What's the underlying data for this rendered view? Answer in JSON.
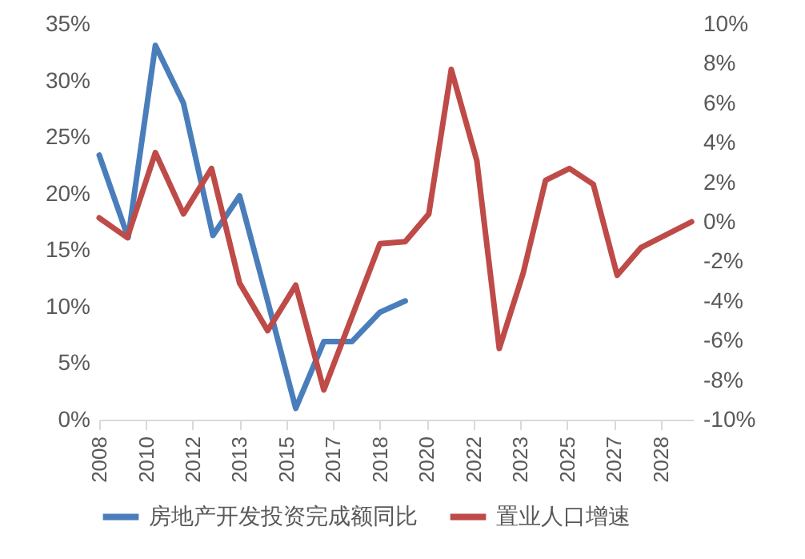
{
  "chart_data": {
    "type": "line",
    "legend": "bottom",
    "grid": false,
    "line_style": "solid",
    "marker": "none",
    "xlim": [
      2008.25,
      2029.4
    ],
    "xticks": [
      {
        "value": 2008.25,
        "label": "2008"
      },
      {
        "value": 2009.92,
        "label": "2010"
      },
      {
        "value": 2011.58,
        "label": "2012"
      },
      {
        "value": 2013.25,
        "label": "2013"
      },
      {
        "value": 2014.92,
        "label": "2015"
      },
      {
        "value": 2016.58,
        "label": "2017"
      },
      {
        "value": 2018.25,
        "label": "2018"
      },
      {
        "value": 2019.92,
        "label": "2020"
      },
      {
        "value": 2021.58,
        "label": "2022"
      },
      {
        "value": 2023.25,
        "label": "2023"
      },
      {
        "value": 2024.92,
        "label": "2025"
      },
      {
        "value": 2026.58,
        "label": "2027"
      },
      {
        "value": 2028.25,
        "label": "2028"
      }
    ],
    "ylim": [
      0,
      35
    ],
    "yticks": [
      {
        "value": 0,
        "label": "0%"
      },
      {
        "value": 5,
        "label": "5%"
      },
      {
        "value": 10,
        "label": "10%"
      },
      {
        "value": 15,
        "label": "15%"
      },
      {
        "value": 20,
        "label": "20%"
      },
      {
        "value": 25,
        "label": "25%"
      },
      {
        "value": 30,
        "label": "30%"
      },
      {
        "value": 35,
        "label": "35%"
      }
    ],
    "y2lim": [
      -10,
      10
    ],
    "y2ticks": [
      {
        "value": -10,
        "label": "-10%"
      },
      {
        "value": -8,
        "label": "-8%"
      },
      {
        "value": -6,
        "label": "-6%"
      },
      {
        "value": -4,
        "label": "-4%"
      },
      {
        "value": -2,
        "label": "-2%"
      },
      {
        "value": 0,
        "label": "0%"
      },
      {
        "value": 2,
        "label": "2%"
      },
      {
        "value": 4,
        "label": "4%"
      },
      {
        "value": 6,
        "label": "6%"
      },
      {
        "value": 8,
        "label": "8%"
      },
      {
        "value": 10,
        "label": "10%"
      }
    ],
    "series": [
      {
        "name": "房地产开发投资完成额同比",
        "color": "#4a7ebb",
        "x": [
          2008.25,
          2009.28,
          2010.25,
          2011.25,
          2012.3,
          2013.25,
          2014.25,
          2015.25,
          2016.25,
          2017.25,
          2018.25,
          2019.15
        ],
        "values": [
          23.4,
          16.1,
          33.1,
          28.0,
          16.3,
          19.8,
          10.5,
          1.0,
          6.9,
          6.9,
          9.5,
          10.5
        ]
      },
      {
        "name": "置业人口增速",
        "color": "#be4b48",
        "axis": "y2",
        "x": [
          2008.25,
          2009.25,
          2010.25,
          2011.25,
          2012.25,
          2013.25,
          2014.25,
          2015.25,
          2016.25,
          2018.25,
          2019.15,
          2019.99,
          2020.79,
          2021.7,
          2022.5,
          2023.35,
          2024.15,
          2025.0,
          2025.85,
          2026.7,
          2027.55,
          2029.35
        ],
        "values": [
          0.2,
          -0.8,
          3.5,
          0.4,
          2.7,
          -3.1,
          -5.5,
          -3.2,
          -8.5,
          -1.1,
          -1.0,
          0.4,
          7.7,
          3.1,
          -6.4,
          -2.6,
          2.1,
          2.7,
          1.9,
          -2.7,
          -1.3,
          0.0
        ]
      }
    ]
  }
}
